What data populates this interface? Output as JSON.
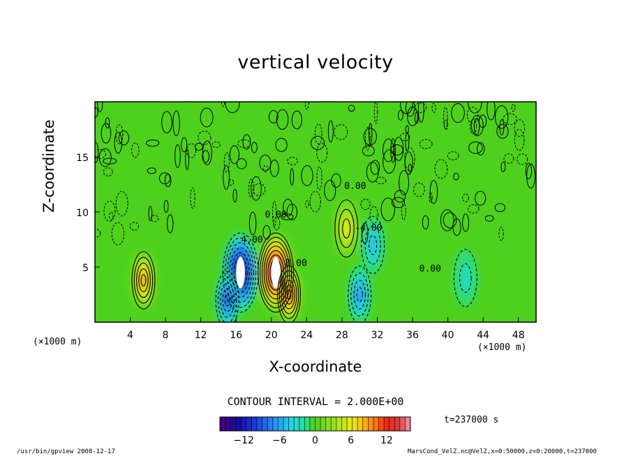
{
  "chart_data": {
    "type": "heatmap",
    "title": "vertical velocity",
    "xlabel": "X-coordinate",
    "ylabel": "Z-coordinate",
    "x_unit": "(×1000 m)",
    "y_unit": "(×1000 m)",
    "x_ticks": [
      4,
      8,
      12,
      16,
      20,
      24,
      28,
      32,
      36,
      40,
      44,
      48
    ],
    "y_ticks": [
      5,
      10,
      15
    ],
    "xlim": [
      0,
      50
    ],
    "ylim": [
      0,
      20
    ],
    "contour_labels": [
      "0.00",
      "4.00",
      "8.00",
      "-4.00"
    ],
    "contour_interval": "CONTOUR INTERVAL = 2.000E+00",
    "colorbar_ticks": [
      -12,
      -6,
      0,
      6,
      12
    ],
    "colorbar_range": [
      -16,
      16
    ],
    "time": "t=237000 s",
    "features": [
      {
        "x": 5.5,
        "z": 3.8,
        "value": 10
      },
      {
        "x": 20.5,
        "z": 4.5,
        "value": 18
      },
      {
        "x": 22,
        "z": 2.5,
        "value": 12
      },
      {
        "x": 16.5,
        "z": 4.5,
        "value": -16
      },
      {
        "x": 15,
        "z": 2,
        "value": -10
      },
      {
        "x": 30,
        "z": 2.5,
        "value": -7
      },
      {
        "x": 31.5,
        "z": 7,
        "value": -5
      },
      {
        "x": 28.5,
        "z": 8.5,
        "value": 6
      },
      {
        "x": 42,
        "z": 4,
        "value": -3
      }
    ]
  },
  "footer": {
    "left": "/usr/bin/gpview   2008-12-17",
    "right": "MarsCond_VelZ.nc@VelZ,x=0:50000,z=0:20000,t=237000"
  }
}
